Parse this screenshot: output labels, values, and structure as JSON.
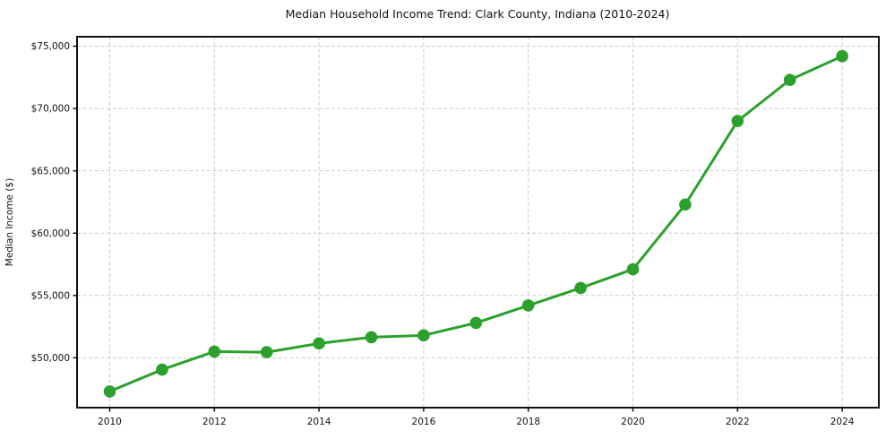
{
  "chart_data": {
    "type": "line",
    "title": "Median Household Income Trend: Clark County, Indiana (2010-2024)",
    "xlabel": "",
    "ylabel": "Median Income ($)",
    "x": [
      2010,
      2011,
      2012,
      2013,
      2014,
      2015,
      2016,
      2017,
      2018,
      2019,
      2020,
      2021,
      2022,
      2023,
      2024
    ],
    "series": [
      {
        "name": "Median Household Income",
        "values": [
          47300,
          49050,
          50500,
          50450,
          51150,
          51650,
          51800,
          52800,
          54200,
          55600,
          57100,
          62300,
          69000,
          72300,
          74200
        ]
      }
    ],
    "x_ticks": [
      2010,
      2012,
      2014,
      2016,
      2018,
      2020,
      2022,
      2024
    ],
    "x_tick_labels": [
      "2010",
      "2012",
      "2014",
      "2016",
      "2018",
      "2020",
      "2022",
      "2024"
    ],
    "y_ticks": [
      50000,
      55000,
      60000,
      65000,
      70000,
      75000
    ],
    "y_tick_labels": [
      "$50,000",
      "$55,000",
      "$60,000",
      "$65,000",
      "$70,000",
      "$75,000"
    ],
    "xlim": [
      2009.375,
      2024.7
    ],
    "ylim": [
      46000,
      75760
    ],
    "grid": true,
    "legend": "none",
    "colors": {
      "line": "#2ca02c",
      "marker": "#2ca02c",
      "grid": "#cbcbcb",
      "frame": "#111111",
      "text": "#111111",
      "background": "#ffffff"
    }
  }
}
